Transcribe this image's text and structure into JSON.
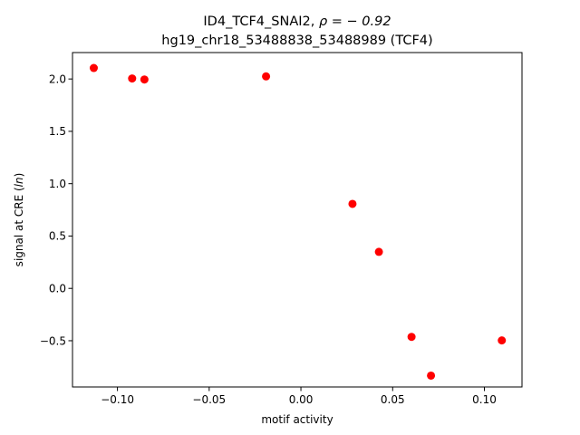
{
  "chart_data": {
    "type": "scatter",
    "title_line1_prefix": "ID4_TCF4_SNAI2, ",
    "title_line1_rho": "ρ = − 0.92",
    "title_line2": "hg19_chr18_53488838_53488989 (TCF4)",
    "xlabel": "motif activity",
    "ylabel_prefix": "signal at CRE (",
    "ylabel_italic": "ln",
    "ylabel_suffix": ")",
    "xlim": [
      -0.1245,
      0.1205
    ],
    "ylim": [
      -0.9417,
      2.2524
    ],
    "xticks": [
      {
        "value": -0.1,
        "label": "−0.10"
      },
      {
        "value": -0.05,
        "label": "−0.05"
      },
      {
        "value": 0.0,
        "label": "0.00"
      },
      {
        "value": 0.05,
        "label": "0.05"
      },
      {
        "value": 0.1,
        "label": "0.10"
      }
    ],
    "yticks": [
      {
        "value": -0.5,
        "label": "−0.5"
      },
      {
        "value": 0.0,
        "label": "0.0"
      },
      {
        "value": 0.5,
        "label": "0.5"
      },
      {
        "value": 1.0,
        "label": "1.0"
      },
      {
        "value": 1.5,
        "label": "1.5"
      },
      {
        "value": 2.0,
        "label": "2.0"
      }
    ],
    "points": [
      {
        "x": -0.1129,
        "y": 2.105
      },
      {
        "x": -0.092,
        "y": 2.005
      },
      {
        "x": -0.0853,
        "y": 1.995
      },
      {
        "x": -0.019,
        "y": 2.025
      },
      {
        "x": 0.0281,
        "y": 0.807
      },
      {
        "x": 0.0425,
        "y": 0.349
      },
      {
        "x": 0.0603,
        "y": -0.463
      },
      {
        "x": 0.0709,
        "y": -0.833
      },
      {
        "x": 0.1095,
        "y": -0.497
      }
    ],
    "marker_color": "#ff0000",
    "grid": false,
    "legend": "none"
  }
}
